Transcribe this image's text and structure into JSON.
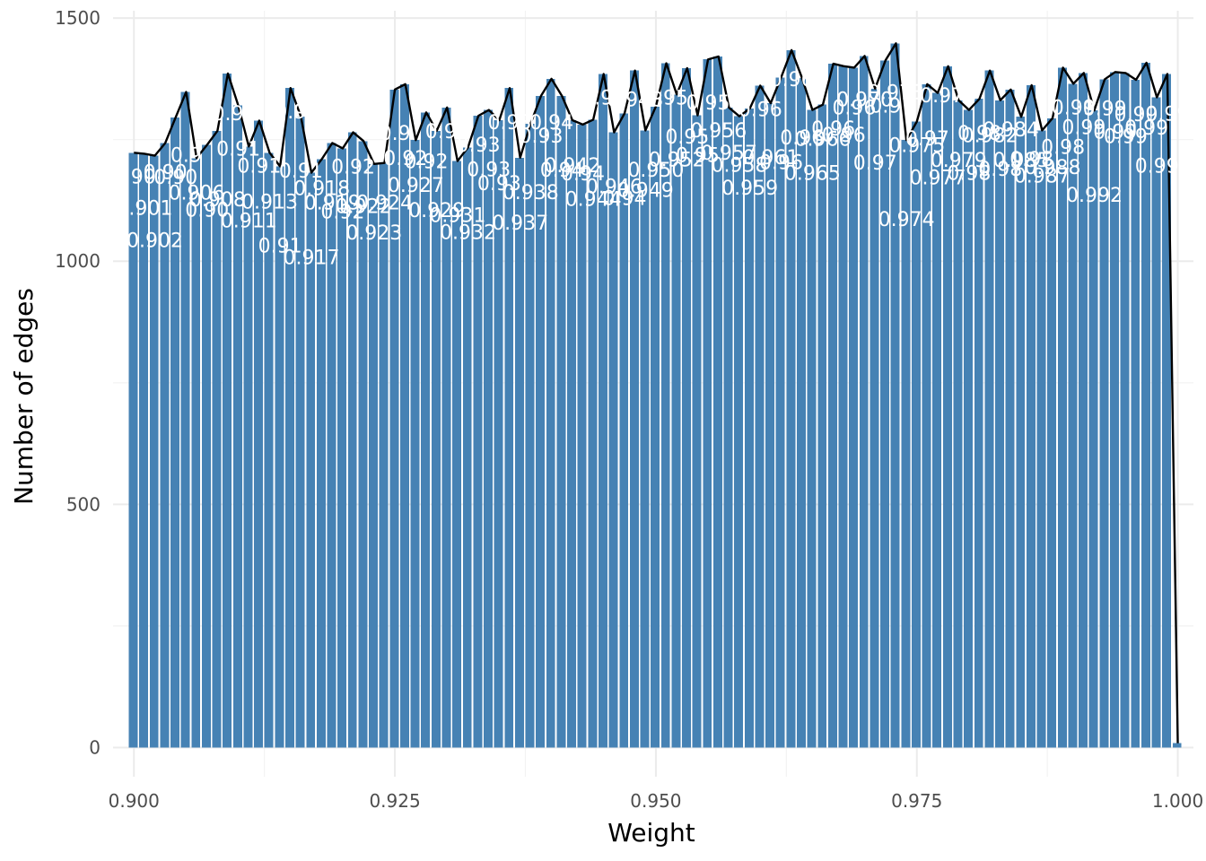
{
  "chart_data": {
    "type": "bar",
    "xlabel": "Weight",
    "ylabel": "Number of edges",
    "xlim": [
      0.898,
      1.0015
    ],
    "ylim": [
      -60,
      1515
    ],
    "x_ticks": [
      {
        "value": 0.9,
        "label": "0.900"
      },
      {
        "value": 0.925,
        "label": "0.925"
      },
      {
        "value": 0.95,
        "label": "0.950"
      },
      {
        "value": 0.975,
        "label": "0.975"
      },
      {
        "value": 1.0,
        "label": "1.000"
      }
    ],
    "y_ticks": [
      {
        "value": 0,
        "label": "0"
      },
      {
        "value": 500,
        "label": "500"
      },
      {
        "value": 1000,
        "label": "1000"
      },
      {
        "value": 1500,
        "label": "1500"
      }
    ],
    "grid": true,
    "bar_color": "#4682b4",
    "line_color": "#000000",
    "bin_width": 0.00099,
    "bins": [
      {
        "x": 0.9,
        "count": 1223,
        "label": "0.90"
      },
      {
        "x": 0.901,
        "count": 1221,
        "label": "0.901"
      },
      {
        "x": 0.902,
        "count": 1217,
        "label": "0.902"
      },
      {
        "x": 0.903,
        "count": 1243,
        "label": "0.90"
      },
      {
        "x": 0.904,
        "count": 1296,
        "label": "0.90"
      },
      {
        "x": 0.905,
        "count": 1348,
        "label": "0.9"
      },
      {
        "x": 0.906,
        "count": 1212,
        "label": "0.906"
      },
      {
        "x": 0.907,
        "count": 1239,
        "label": "0.90"
      },
      {
        "x": 0.908,
        "count": 1268,
        "label": "0.908"
      },
      {
        "x": 0.909,
        "count": 1386,
        "label": "0.9"
      },
      {
        "x": 0.91,
        "count": 1320,
        "label": "0.91"
      },
      {
        "x": 0.911,
        "count": 1236,
        "label": "0.911"
      },
      {
        "x": 0.912,
        "count": 1289,
        "label": "0.91"
      },
      {
        "x": 0.913,
        "count": 1223,
        "label": "0.913"
      },
      {
        "x": 0.914,
        "count": 1195,
        "label": "0.91"
      },
      {
        "x": 0.915,
        "count": 1356,
        "label": "0.9"
      },
      {
        "x": 0.916,
        "count": 1297,
        "label": "0.91"
      },
      {
        "x": 0.917,
        "count": 1182,
        "label": "0.917"
      },
      {
        "x": 0.918,
        "count": 1210,
        "label": "0.918"
      },
      {
        "x": 0.919,
        "count": 1243,
        "label": "0.919"
      },
      {
        "x": 0.92,
        "count": 1232,
        "label": "0.92"
      },
      {
        "x": 0.921,
        "count": 1265,
        "label": "0.92"
      },
      {
        "x": 0.922,
        "count": 1247,
        "label": "0.922"
      },
      {
        "x": 0.923,
        "count": 1200,
        "label": "0.923"
      },
      {
        "x": 0.924,
        "count": 1202,
        "label": "0.924"
      },
      {
        "x": 0.925,
        "count": 1353,
        "label": "0.9"
      },
      {
        "x": 0.926,
        "count": 1364,
        "label": "0.92"
      },
      {
        "x": 0.927,
        "count": 1249,
        "label": "0.927"
      },
      {
        "x": 0.928,
        "count": 1306,
        "label": "0.92"
      },
      {
        "x": 0.929,
        "count": 1268,
        "label": "0.929"
      },
      {
        "x": 0.93,
        "count": 1316,
        "label": "0.93"
      },
      {
        "x": 0.931,
        "count": 1206,
        "label": "0.931"
      },
      {
        "x": 0.932,
        "count": 1234,
        "label": "0.932"
      },
      {
        "x": 0.933,
        "count": 1299,
        "label": "0.93"
      },
      {
        "x": 0.934,
        "count": 1311,
        "label": "0.93"
      },
      {
        "x": 0.935,
        "count": 1290,
        "label": "0.93"
      },
      {
        "x": 0.936,
        "count": 1356,
        "label": "0.93"
      },
      {
        "x": 0.937,
        "count": 1213,
        "label": "0.937"
      },
      {
        "x": 0.938,
        "count": 1283,
        "label": "0.938"
      },
      {
        "x": 0.939,
        "count": 1340,
        "label": "0.93"
      },
      {
        "x": 0.94,
        "count": 1375,
        "label": "0.94"
      },
      {
        "x": 0.941,
        "count": 1340,
        "label": "0.94"
      },
      {
        "x": 0.942,
        "count": 1290,
        "label": "0.942"
      },
      {
        "x": 0.943,
        "count": 1281,
        "label": "0.94"
      },
      {
        "x": 0.944,
        "count": 1291,
        "label": "0.944"
      },
      {
        "x": 0.945,
        "count": 1385,
        "label": "0.94"
      },
      {
        "x": 0.946,
        "count": 1265,
        "label": "0.946"
      },
      {
        "x": 0.947,
        "count": 1304,
        "label": "0.94"
      },
      {
        "x": 0.948,
        "count": 1392,
        "label": "0.948"
      },
      {
        "x": 0.949,
        "count": 1269,
        "label": "0.949"
      },
      {
        "x": 0.95,
        "count": 1318,
        "label": "0.950"
      },
      {
        "x": 0.951,
        "count": 1407,
        "label": "0.95"
      },
      {
        "x": 0.952,
        "count": 1343,
        "label": "0.952"
      },
      {
        "x": 0.953,
        "count": 1397,
        "label": "0.95"
      },
      {
        "x": 0.954,
        "count": 1300,
        "label": "0.95"
      },
      {
        "x": 0.955,
        "count": 1415,
        "label": "0.95"
      },
      {
        "x": 0.956,
        "count": 1421,
        "label": "0.956"
      },
      {
        "x": 0.957,
        "count": 1316,
        "label": "0.957"
      },
      {
        "x": 0.958,
        "count": 1298,
        "label": "0.958"
      },
      {
        "x": 0.959,
        "count": 1314,
        "label": "0.959"
      },
      {
        "x": 0.96,
        "count": 1361,
        "label": "0.96"
      },
      {
        "x": 0.961,
        "count": 1325,
        "label": "0.961"
      },
      {
        "x": 0.962,
        "count": 1378,
        "label": "0.96"
      },
      {
        "x": 0.963,
        "count": 1434,
        "label": "0.96"
      },
      {
        "x": 0.964,
        "count": 1377,
        "label": "0.96"
      },
      {
        "x": 0.965,
        "count": 1311,
        "label": "0.965"
      },
      {
        "x": 0.966,
        "count": 1322,
        "label": "0.966"
      },
      {
        "x": 0.967,
        "count": 1406,
        "label": "0.96"
      },
      {
        "x": 0.968,
        "count": 1401,
        "label": "0.96"
      },
      {
        "x": 0.969,
        "count": 1398,
        "label": "0.96"
      },
      {
        "x": 0.97,
        "count": 1422,
        "label": "0.970"
      },
      {
        "x": 0.971,
        "count": 1355,
        "label": "0.97"
      },
      {
        "x": 0.972,
        "count": 1413,
        "label": "0.9"
      },
      {
        "x": 0.973,
        "count": 1448,
        "label": "0.973"
      },
      {
        "x": 0.974,
        "count": 1249,
        "label": "0.974"
      },
      {
        "x": 0.975,
        "count": 1287,
        "label": "0.975"
      },
      {
        "x": 0.976,
        "count": 1364,
        "label": "0.97"
      },
      {
        "x": 0.977,
        "count": 1346,
        "label": "0.977"
      },
      {
        "x": 0.978,
        "count": 1401,
        "label": "0.978"
      },
      {
        "x": 0.979,
        "count": 1331,
        "label": "0.979"
      },
      {
        "x": 0.98,
        "count": 1311,
        "label": "0.98"
      },
      {
        "x": 0.981,
        "count": 1334,
        "label": "0.98"
      },
      {
        "x": 0.982,
        "count": 1392,
        "label": "0.982"
      },
      {
        "x": 0.983,
        "count": 1331,
        "label": "0.98"
      },
      {
        "x": 0.984,
        "count": 1353,
        "label": "0.984"
      },
      {
        "x": 0.985,
        "count": 1297,
        "label": "0.985"
      },
      {
        "x": 0.986,
        "count": 1362,
        "label": "0.98"
      },
      {
        "x": 0.987,
        "count": 1269,
        "label": "0.987"
      },
      {
        "x": 0.988,
        "count": 1294,
        "label": "0.988"
      },
      {
        "x": 0.989,
        "count": 1398,
        "label": "0.98"
      },
      {
        "x": 0.99,
        "count": 1365,
        "label": "0.99"
      },
      {
        "x": 0.991,
        "count": 1387,
        "label": "0.99"
      },
      {
        "x": 0.992,
        "count": 1310,
        "label": "0.992"
      },
      {
        "x": 0.993,
        "count": 1374,
        "label": "0.99"
      },
      {
        "x": 0.994,
        "count": 1389,
        "label": "0.99"
      },
      {
        "x": 0.995,
        "count": 1387,
        "label": "0.99"
      },
      {
        "x": 0.996,
        "count": 1373,
        "label": "0.99"
      },
      {
        "x": 0.997,
        "count": 1408,
        "label": "0.99"
      },
      {
        "x": 0.998,
        "count": 1337,
        "label": "0.99"
      },
      {
        "x": 0.999,
        "count": 1385,
        "label": "0.99"
      },
      {
        "x": 1.0,
        "count": 9,
        "label": ""
      }
    ]
  }
}
